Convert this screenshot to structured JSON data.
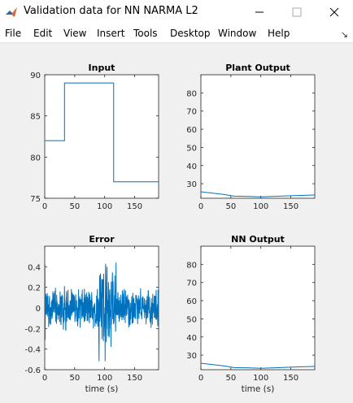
{
  "window": {
    "title": "Validation data for NN NARMA L2",
    "icon": "matlab-icon",
    "controls": [
      "minimize-icon",
      "maximize-icon",
      "close-icon"
    ]
  },
  "menu": {
    "items": [
      "File",
      "Edit",
      "View",
      "Insert",
      "Tools",
      "Desktop",
      "Window",
      "Help"
    ],
    "dock_icon": "dock-arrow-icon",
    "dock_glyph": "↘"
  },
  "colors": {
    "line": "#0072bd",
    "axes_bg": "#ffffff",
    "figure_bg": "#f0f0f0"
  },
  "chart_data": [
    {
      "type": "line",
      "title": "Input",
      "xlabel": "",
      "ylabel": "",
      "xlim": [
        0,
        190
      ],
      "ylim": [
        75,
        90
      ],
      "xticks": [
        0,
        50,
        100,
        150
      ],
      "yticks": [
        75,
        80,
        85,
        90
      ],
      "series": [
        {
          "x": [
            0,
            33,
            33,
            115,
            115,
            190
          ],
          "y": [
            82,
            82,
            89,
            89,
            77,
            77
          ]
        }
      ]
    },
    {
      "type": "line",
      "title": "Plant Output",
      "xlabel": "",
      "ylabel": "",
      "xlim": [
        0,
        190
      ],
      "ylim": [
        22,
        90
      ],
      "xticks": [
        0,
        50,
        100,
        150
      ],
      "yticks": [
        30,
        40,
        50,
        60,
        70,
        80
      ],
      "series": [
        {
          "x": [
            0,
            20,
            40,
            55,
            80,
            100,
            120,
            150,
            190
          ],
          "y": [
            25.5,
            24.8,
            24.0,
            23.2,
            23.0,
            22.8,
            23.0,
            23.4,
            23.8
          ]
        }
      ]
    },
    {
      "type": "line",
      "title": "Error",
      "xlabel": "time (s)",
      "ylabel": "",
      "xlim": [
        0,
        190
      ],
      "ylim": [
        -0.6,
        0.6
      ],
      "xticks": [
        0,
        50,
        100,
        150
      ],
      "yticks": [
        -0.6,
        -0.4,
        -0.2,
        0,
        0.2,
        0.4
      ],
      "series": [
        {
          "description_of_signal": "dense noise around 0",
          "noise_segments": [
            {
              "x": [
                0,
                1
              ],
              "amplitude": 0.5
            },
            {
              "x": [
                1,
                90
              ],
              "amplitude": 0.2
            },
            {
              "x": [
                90,
                120
              ],
              "amplitude": 0.48
            },
            {
              "x": [
                120,
                190
              ],
              "amplitude": 0.18
            }
          ]
        }
      ]
    },
    {
      "type": "line",
      "title": "NN Output",
      "xlabel": "time (s)",
      "ylabel": "",
      "xlim": [
        0,
        190
      ],
      "ylim": [
        22,
        90
      ],
      "xticks": [
        0,
        50,
        100,
        150
      ],
      "yticks": [
        30,
        40,
        50,
        60,
        70,
        80
      ],
      "series": [
        {
          "x": [
            0,
            20,
            40,
            55,
            80,
            100,
            120,
            150,
            190
          ],
          "y": [
            25.5,
            24.8,
            24.0,
            23.2,
            23.0,
            22.8,
            23.0,
            23.4,
            23.8
          ]
        }
      ]
    }
  ]
}
